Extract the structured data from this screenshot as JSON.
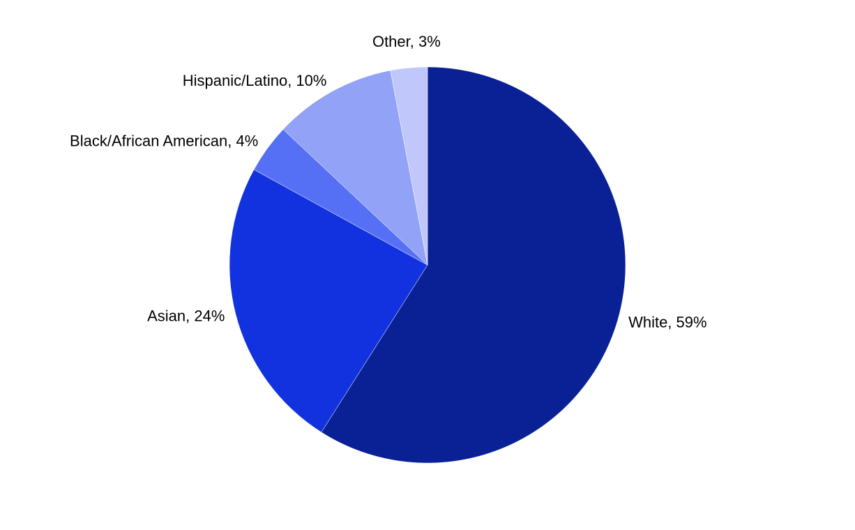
{
  "chart_data": {
    "type": "pie",
    "values": [
      59,
      24,
      4,
      10,
      3
    ],
    "value_labels": [
      "White, 59%",
      "Asian, 24%",
      "Black/African American, 4%",
      "Hispanic/Latino, 10%",
      "Other, 3%"
    ],
    "colors": [
      "#0a2196",
      "#1232e0",
      "#5570f5",
      "#91a2f7",
      "#c0c8fb"
    ]
  }
}
